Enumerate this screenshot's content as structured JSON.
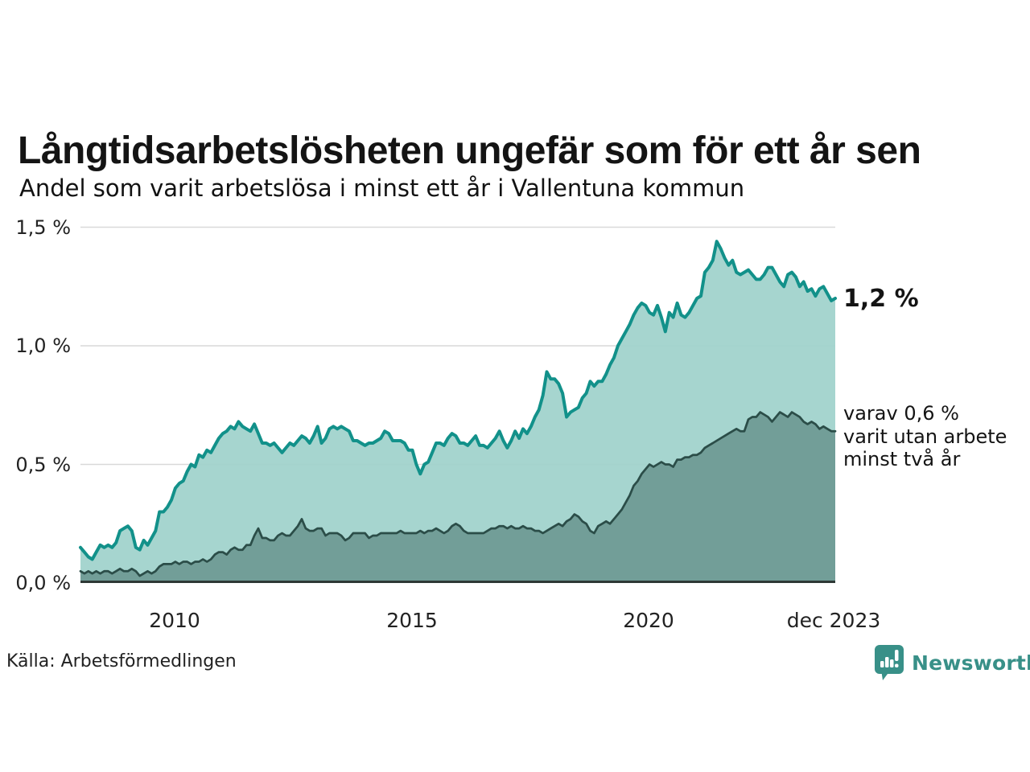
{
  "header": {
    "title": "Långtidsarbetslösheten ungefär som för ett år sen",
    "subtitle": "Andel som varit arbetslösa i minst ett år i Vallentuna kommun"
  },
  "annotations": {
    "latest_total": "1,2 %",
    "share_note": "varav 0,6 %\nvarit utan arbete\nminst två år"
  },
  "footer": {
    "source": "Källa: Arbetsförmedlingen",
    "brand": "Newsworthy"
  },
  "colors": {
    "grid": "#d9d9d9",
    "axis": "#2d3835",
    "teal_line": "#12918a",
    "light_fill": "#9fd2cb",
    "dark_line": "#2b4d48",
    "dark_fill": "#6f9b96",
    "brand_teal": "#389088",
    "text": "#141414"
  },
  "chart_data": {
    "type": "area",
    "title": "Långtidsarbetslösheten ungefär som för ett år sen",
    "subtitle": "Andel som varit arbetslösa i minst ett år i Vallentuna kommun",
    "unit": "%",
    "frequency": "monthly",
    "x_start": "2008-01",
    "x_end": "2023-12",
    "x_tick_labels": [
      "2010",
      "2015",
      "2020",
      "dec 2023"
    ],
    "y_ticks": [
      0,
      0.5,
      1.0,
      1.5
    ],
    "y_tick_labels": [
      "0,0 %",
      "0,5 %",
      "1,0 %",
      "1,5 %"
    ],
    "ylim": [
      0,
      1.5
    ],
    "grid": true,
    "legend": "inline-annotations",
    "series": [
      {
        "name": "Andel arbetslösa minst ett år",
        "latest_label": "1,2 %",
        "latest_value": 1.2,
        "values": [
          0.15,
          0.13,
          0.11,
          0.1,
          0.13,
          0.16,
          0.15,
          0.16,
          0.15,
          0.17,
          0.22,
          0.23,
          0.24,
          0.22,
          0.15,
          0.14,
          0.18,
          0.16,
          0.19,
          0.22,
          0.3,
          0.3,
          0.32,
          0.35,
          0.4,
          0.42,
          0.43,
          0.47,
          0.5,
          0.49,
          0.54,
          0.53,
          0.56,
          0.55,
          0.58,
          0.61,
          0.63,
          0.64,
          0.66,
          0.65,
          0.68,
          0.66,
          0.65,
          0.64,
          0.67,
          0.63,
          0.59,
          0.59,
          0.58,
          0.59,
          0.57,
          0.55,
          0.57,
          0.59,
          0.58,
          0.6,
          0.62,
          0.61,
          0.59,
          0.62,
          0.66,
          0.59,
          0.61,
          0.65,
          0.66,
          0.65,
          0.66,
          0.65,
          0.64,
          0.6,
          0.6,
          0.59,
          0.58,
          0.59,
          0.59,
          0.6,
          0.61,
          0.64,
          0.63,
          0.6,
          0.6,
          0.6,
          0.59,
          0.56,
          0.56,
          0.5,
          0.46,
          0.5,
          0.51,
          0.55,
          0.59,
          0.59,
          0.58,
          0.61,
          0.63,
          0.62,
          0.59,
          0.59,
          0.58,
          0.6,
          0.62,
          0.58,
          0.58,
          0.57,
          0.59,
          0.61,
          0.64,
          0.6,
          0.57,
          0.6,
          0.64,
          0.61,
          0.65,
          0.63,
          0.66,
          0.7,
          0.73,
          0.79,
          0.89,
          0.86,
          0.86,
          0.84,
          0.8,
          0.7,
          0.72,
          0.73,
          0.74,
          0.78,
          0.8,
          0.85,
          0.83,
          0.85,
          0.85,
          0.88,
          0.92,
          0.95,
          1.0,
          1.03,
          1.06,
          1.09,
          1.13,
          1.16,
          1.18,
          1.17,
          1.14,
          1.13,
          1.17,
          1.12,
          1.06,
          1.14,
          1.12,
          1.18,
          1.13,
          1.12,
          1.14,
          1.17,
          1.2,
          1.21,
          1.31,
          1.33,
          1.36,
          1.44,
          1.41,
          1.37,
          1.34,
          1.36,
          1.31,
          1.3,
          1.31,
          1.32,
          1.3,
          1.28,
          1.28,
          1.3,
          1.33,
          1.33,
          1.3,
          1.27,
          1.25,
          1.3,
          1.31,
          1.29,
          1.25,
          1.27,
          1.23,
          1.24,
          1.21,
          1.24,
          1.25,
          1.22,
          1.19,
          1.2
        ]
      },
      {
        "name": "varav arbetslösa minst två år",
        "latest_label": "0,6 %",
        "latest_value": 0.6,
        "values": [
          0.05,
          0.04,
          0.05,
          0.04,
          0.05,
          0.04,
          0.05,
          0.05,
          0.04,
          0.05,
          0.06,
          0.05,
          0.05,
          0.06,
          0.05,
          0.03,
          0.04,
          0.05,
          0.04,
          0.05,
          0.07,
          0.08,
          0.08,
          0.08,
          0.09,
          0.08,
          0.09,
          0.09,
          0.08,
          0.09,
          0.09,
          0.1,
          0.09,
          0.1,
          0.12,
          0.13,
          0.13,
          0.12,
          0.14,
          0.15,
          0.14,
          0.14,
          0.16,
          0.16,
          0.2,
          0.23,
          0.19,
          0.19,
          0.18,
          0.18,
          0.2,
          0.21,
          0.2,
          0.2,
          0.22,
          0.24,
          0.27,
          0.23,
          0.22,
          0.22,
          0.23,
          0.23,
          0.2,
          0.21,
          0.21,
          0.21,
          0.2,
          0.18,
          0.19,
          0.21,
          0.21,
          0.21,
          0.21,
          0.19,
          0.2,
          0.2,
          0.21,
          0.21,
          0.21,
          0.21,
          0.21,
          0.22,
          0.21,
          0.21,
          0.21,
          0.21,
          0.22,
          0.21,
          0.22,
          0.22,
          0.23,
          0.22,
          0.21,
          0.22,
          0.24,
          0.25,
          0.24,
          0.22,
          0.21,
          0.21,
          0.21,
          0.21,
          0.21,
          0.22,
          0.23,
          0.23,
          0.24,
          0.24,
          0.23,
          0.24,
          0.23,
          0.23,
          0.24,
          0.23,
          0.23,
          0.22,
          0.22,
          0.21,
          0.22,
          0.23,
          0.24,
          0.25,
          0.24,
          0.26,
          0.27,
          0.29,
          0.28,
          0.26,
          0.25,
          0.22,
          0.21,
          0.24,
          0.25,
          0.26,
          0.25,
          0.27,
          0.29,
          0.31,
          0.34,
          0.37,
          0.41,
          0.43,
          0.46,
          0.48,
          0.5,
          0.49,
          0.5,
          0.51,
          0.5,
          0.5,
          0.49,
          0.52,
          0.52,
          0.53,
          0.53,
          0.54,
          0.54,
          0.55,
          0.57,
          0.58,
          0.59,
          0.6,
          0.61,
          0.62,
          0.63,
          0.64,
          0.65,
          0.64,
          0.64,
          0.69,
          0.7,
          0.7,
          0.72,
          0.71,
          0.7,
          0.68,
          0.7,
          0.72,
          0.71,
          0.7,
          0.72,
          0.71,
          0.7,
          0.68,
          0.67,
          0.68,
          0.67,
          0.65,
          0.66,
          0.65,
          0.64,
          0.64
        ]
      }
    ]
  }
}
